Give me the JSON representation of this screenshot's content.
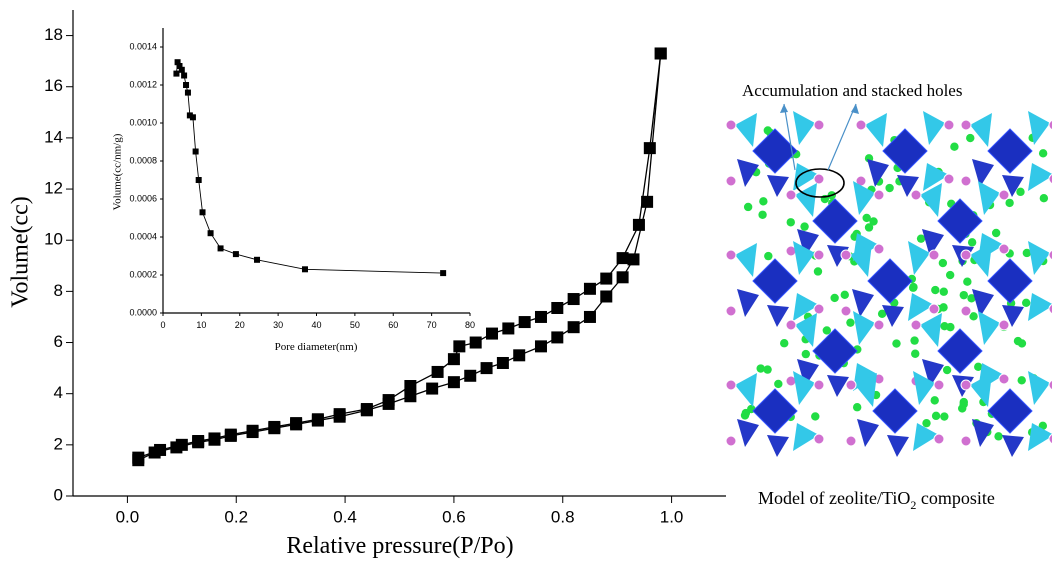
{
  "chart_data": [
    {
      "type": "line",
      "y_label": "Volume(cc)",
      "x_label": "Relative pressure(P/Po)",
      "xlim": [
        -0.1,
        1.1
      ],
      "ylim": [
        0,
        19
      ],
      "xticks": [
        {
          "value": 0,
          "label": "0.0"
        },
        0.2,
        0.4,
        0.6,
        0.8,
        {
          "value": 1,
          "label": "1.0"
        }
      ],
      "yticks": [
        0,
        2,
        4,
        6,
        8,
        10,
        12,
        14,
        16,
        18
      ],
      "series": [
        {
          "color": "#000000",
          "x": [
            0.02,
            0.05,
            0.09,
            0.13,
            0.16,
            0.19,
            0.23,
            0.27,
            0.31,
            0.35,
            0.39,
            0.44,
            0.48,
            0.52,
            0.56,
            0.6,
            0.63,
            0.66,
            0.69,
            0.72,
            0.76,
            0.79,
            0.82,
            0.85,
            0.88,
            0.91,
            0.93,
            0.955,
            0.98
          ],
          "values": [
            1.4,
            1.7,
            1.9,
            2.1,
            2.2,
            2.35,
            2.5,
            2.65,
            2.8,
            2.95,
            3.1,
            3.35,
            3.6,
            3.9,
            4.2,
            4.45,
            4.7,
            5.0,
            5.2,
            5.5,
            5.85,
            6.2,
            6.6,
            7.0,
            7.8,
            8.55,
            9.25,
            11.5,
            17.3
          ]
        },
        {
          "color": "#000000",
          "x": [
            0.98,
            0.96,
            0.94,
            0.91,
            0.88,
            0.85,
            0.82,
            0.79,
            0.76,
            0.73,
            0.7,
            0.67,
            0.64,
            0.61,
            0.6,
            0.57,
            0.52,
            0.48,
            0.44,
            0.39,
            0.35,
            0.31,
            0.27,
            0.23,
            0.19,
            0.16,
            0.13,
            0.1,
            0.06,
            0.02
          ],
          "values": [
            17.3,
            13.6,
            10.6,
            9.3,
            8.5,
            8.1,
            7.7,
            7.35,
            7.0,
            6.8,
            6.55,
            6.35,
            6.0,
            5.85,
            5.35,
            4.85,
            4.3,
            3.75,
            3.4,
            3.2,
            3.0,
            2.85,
            2.7,
            2.55,
            2.4,
            2.25,
            2.15,
            2.0,
            1.8,
            1.5
          ]
        }
      ]
    },
    {
      "type": "line",
      "y_label": "Volume(cc/nm/g)",
      "x_label": "Pore diameter(nm)",
      "xlim": [
        0,
        80
      ],
      "ylim": [
        0,
        0.0015
      ],
      "xticks": [
        0,
        10,
        20,
        30,
        40,
        50,
        60,
        70,
        80
      ],
      "yticks": [
        {
          "value": 0,
          "label": "0.0000"
        },
        {
          "value": 0.0002,
          "label": "0.0002"
        },
        {
          "value": 0.0004,
          "label": "0.0004"
        },
        {
          "value": 0.0006,
          "label": "0.0006"
        },
        {
          "value": 0.0008,
          "label": "0.0008"
        },
        {
          "value": 0.001,
          "label": "0.0010"
        },
        {
          "value": 0.0012,
          "label": "0.0012"
        },
        {
          "value": 0.0014,
          "label": "0.0014"
        }
      ],
      "series": [
        {
          "color": "#000000",
          "x": [
            3.5,
            3.8,
            4.3,
            4.9,
            5.5,
            6.0,
            6.5,
            7.0,
            7.8,
            8.5,
            9.3,
            10.3,
            12.4,
            15,
            19,
            24.5,
            37,
            73
          ],
          "values": [
            0.00126,
            0.00132,
            0.0013,
            0.00128,
            0.00125,
            0.0012,
            0.00116,
            0.00104,
            0.00103,
            0.00085,
            0.0007,
            0.00053,
            0.00042,
            0.00034,
            0.00031,
            0.00028,
            0.00023,
            0.00021
          ]
        }
      ]
    }
  ],
  "figure": {
    "annotation": "Accumulation and stacked holes",
    "caption": [
      "Model of zeolite/TiO",
      "2",
      " composite"
    ]
  }
}
